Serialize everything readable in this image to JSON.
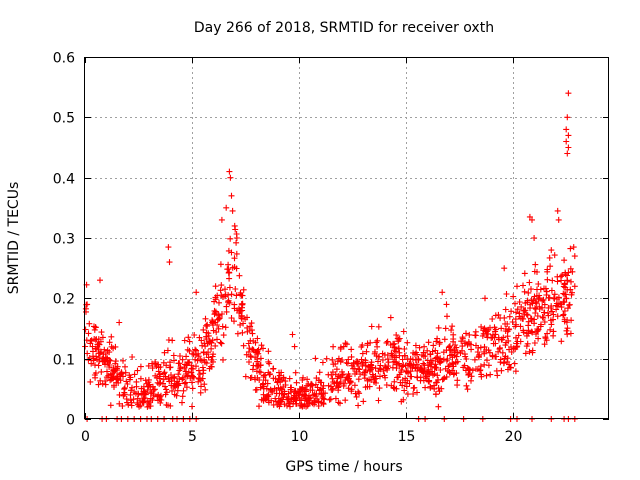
{
  "chart_data": {
    "type": "scatter",
    "title": "Day 266 of 2018, SRMTID for receiver oxth",
    "xlabel": "GPS time / hours",
    "ylabel": "SRMTID / TECUs",
    "xlim": [
      0,
      24.5
    ],
    "ylim": [
      0,
      0.6
    ],
    "xticks": [
      0,
      5,
      10,
      15,
      20
    ],
    "xtick_labels": [
      "0",
      "5",
      "10",
      "15",
      "20"
    ],
    "yticks": [
      0,
      0.1,
      0.2,
      0.3,
      0.4,
      0.5,
      0.6
    ],
    "ytick_labels": [
      "0",
      "0.1",
      "0.2",
      "0.3",
      "0.4",
      "0.5",
      "0.6"
    ],
    "grid": true,
    "marker": "plus",
    "color": "#ff0000",
    "series": [
      {
        "name": "SRMTID",
        "trend": [
          [
            0.0,
            0.16
          ],
          [
            0.3,
            0.12
          ],
          [
            0.6,
            0.1
          ],
          [
            1.0,
            0.09
          ],
          [
            1.5,
            0.07
          ],
          [
            2.0,
            0.055
          ],
          [
            2.5,
            0.045
          ],
          [
            3.0,
            0.05
          ],
          [
            3.5,
            0.06
          ],
          [
            4.0,
            0.07
          ],
          [
            4.5,
            0.075
          ],
          [
            5.0,
            0.08
          ],
          [
            5.5,
            0.1
          ],
          [
            6.0,
            0.14
          ],
          [
            6.5,
            0.19
          ],
          [
            6.8,
            0.23
          ],
          [
            7.2,
            0.2
          ],
          [
            7.6,
            0.14
          ],
          [
            8.0,
            0.09
          ],
          [
            8.5,
            0.06
          ],
          [
            9.0,
            0.05
          ],
          [
            9.5,
            0.04
          ],
          [
            10.0,
            0.035
          ],
          [
            10.5,
            0.04
          ],
          [
            11.0,
            0.05
          ],
          [
            11.5,
            0.06
          ],
          [
            12.0,
            0.08
          ],
          [
            12.5,
            0.075
          ],
          [
            13.0,
            0.085
          ],
          [
            13.5,
            0.09
          ],
          [
            14.0,
            0.1
          ],
          [
            14.5,
            0.105
          ],
          [
            15.0,
            0.075
          ],
          [
            15.5,
            0.08
          ],
          [
            16.0,
            0.085
          ],
          [
            16.5,
            0.09
          ],
          [
            17.0,
            0.1
          ],
          [
            17.5,
            0.11
          ],
          [
            18.0,
            0.105
          ],
          [
            18.5,
            0.11
          ],
          [
            19.0,
            0.12
          ],
          [
            19.5,
            0.13
          ],
          [
            20.0,
            0.14
          ],
          [
            20.5,
            0.16
          ],
          [
            21.0,
            0.17
          ],
          [
            21.5,
            0.18
          ],
          [
            22.0,
            0.19
          ],
          [
            22.5,
            0.2
          ],
          [
            22.8,
            0.22
          ]
        ],
        "spikes": [
          [
            0.1,
            0.19
          ],
          [
            0.7,
            0.23
          ],
          [
            1.6,
            0.16
          ],
          [
            3.9,
            0.285
          ],
          [
            3.95,
            0.26
          ],
          [
            5.2,
            0.21
          ],
          [
            6.4,
            0.33
          ],
          [
            6.6,
            0.35
          ],
          [
            6.75,
            0.41
          ],
          [
            6.8,
            0.4
          ],
          [
            6.85,
            0.37
          ],
          [
            6.9,
            0.345
          ],
          [
            7.0,
            0.32
          ],
          [
            7.1,
            0.3
          ],
          [
            9.7,
            0.14
          ],
          [
            9.8,
            0.12
          ],
          [
            11.3,
            0.1
          ],
          [
            12.1,
            0.12
          ],
          [
            14.9,
            0.145
          ],
          [
            16.7,
            0.21
          ],
          [
            16.9,
            0.19
          ],
          [
            18.7,
            0.2
          ],
          [
            19.6,
            0.25
          ],
          [
            20.2,
            0.22
          ],
          [
            20.8,
            0.335
          ],
          [
            20.9,
            0.33
          ],
          [
            21.0,
            0.3
          ],
          [
            21.8,
            0.28
          ],
          [
            22.1,
            0.345
          ],
          [
            22.15,
            0.33
          ],
          [
            22.5,
            0.2
          ],
          [
            22.6,
            0.54
          ],
          [
            22.55,
            0.5
          ],
          [
            22.5,
            0.48
          ],
          [
            22.6,
            0.47
          ],
          [
            22.5,
            0.46
          ],
          [
            22.6,
            0.45
          ],
          [
            22.55,
            0.44
          ],
          [
            22.85,
            0.285
          ],
          [
            22.9,
            0.27
          ],
          [
            22.9,
            0.22
          ]
        ],
        "zero_values_at_x": [
          0.1,
          0.8,
          1.0,
          1.5,
          1.7,
          2.0,
          2.3,
          2.6,
          2.9,
          3.1,
          3.4,
          3.7,
          4.1,
          4.3,
          4.6,
          4.9,
          5.2,
          15.6,
          15.9,
          16.8,
          17.7,
          18.6,
          19.9,
          20.2,
          20.9,
          21.8,
          22.4,
          22.6,
          22.9
        ],
        "n_points": 1500,
        "scatter_width": 0.03
      }
    ]
  }
}
